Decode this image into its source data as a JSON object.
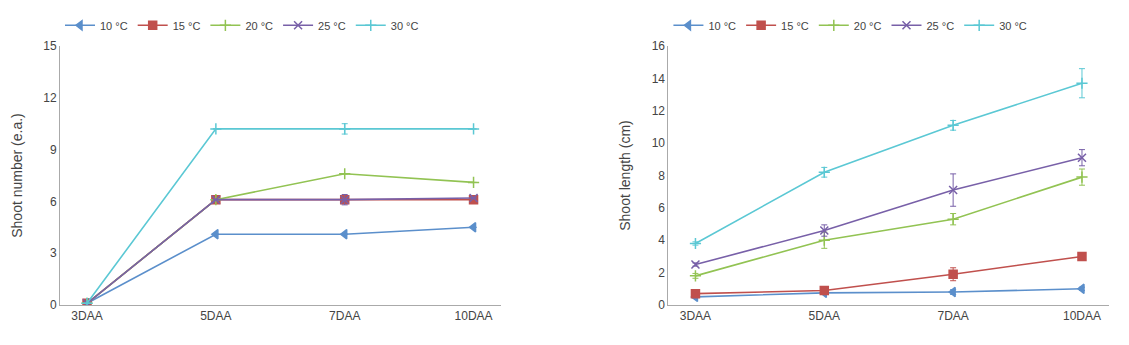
{
  "chart_data": [
    {
      "type": "line",
      "categories": [
        "3DAA",
        "5DAA",
        "7DAA",
        "10DAA"
      ],
      "ylabel": "Shoot number (e.a.)",
      "ylim": [
        0,
        15
      ],
      "yticks": [
        0,
        3,
        6,
        9,
        12,
        15
      ],
      "grid": false,
      "legend": "top",
      "series": [
        {
          "name": "10 °C",
          "color": "#5b8fcb",
          "marker": "triangle-left",
          "values": [
            0.1,
            4.1,
            4.1,
            4.5
          ],
          "errors": [
            0.0,
            0.0,
            0.0,
            0.0
          ]
        },
        {
          "name": "15 °C",
          "color": "#c0504d",
          "marker": "square",
          "values": [
            0.1,
            6.1,
            6.1,
            6.1
          ],
          "errors": [
            0.0,
            0.0,
            0.0,
            0.0
          ]
        },
        {
          "name": "20 °C",
          "color": "#92c353",
          "marker": "plus",
          "values": [
            0.1,
            6.1,
            7.6,
            7.1
          ],
          "errors": [
            0.0,
            0.0,
            0.0,
            0.0
          ]
        },
        {
          "name": "25 °C",
          "color": "#7860a8",
          "marker": "x",
          "values": [
            0.1,
            6.1,
            6.1,
            6.2
          ],
          "errors": [
            0.0,
            0.0,
            0.3,
            0.0
          ]
        },
        {
          "name": "30 °C",
          "color": "#5bc8d4",
          "marker": "plus",
          "values": [
            0.1,
            10.2,
            10.2,
            10.2
          ],
          "errors": [
            0.0,
            0.0,
            0.3,
            0.0
          ]
        }
      ]
    },
    {
      "type": "line",
      "categories": [
        "3DAA",
        "5DAA",
        "7DAA",
        "10DAA"
      ],
      "ylabel": "Shoot length (cm)",
      "ylim": [
        0,
        16
      ],
      "yticks": [
        0,
        2,
        4,
        6,
        8,
        10,
        12,
        14,
        16
      ],
      "grid": false,
      "legend": "top",
      "series": [
        {
          "name": "10 °C",
          "color": "#5b8fcb",
          "marker": "triangle-left",
          "values": [
            0.5,
            0.75,
            0.8,
            1.0
          ],
          "errors": [
            0.05,
            0.1,
            0.15,
            0.1
          ]
        },
        {
          "name": "15 °C",
          "color": "#c0504d",
          "marker": "square",
          "values": [
            0.7,
            0.9,
            1.9,
            3.0
          ],
          "errors": [
            0.05,
            0.1,
            0.4,
            0.2
          ]
        },
        {
          "name": "20 °C",
          "color": "#92c353",
          "marker": "plus",
          "values": [
            1.8,
            4.0,
            5.3,
            7.9
          ],
          "errors": [
            0.15,
            0.5,
            0.35,
            0.5
          ]
        },
        {
          "name": "25 °C",
          "color": "#7860a8",
          "marker": "x",
          "values": [
            2.5,
            4.6,
            7.1,
            9.1
          ],
          "errors": [
            0.1,
            0.35,
            1.0,
            0.5
          ]
        },
        {
          "name": "30 °C",
          "color": "#5bc8d4",
          "marker": "plus",
          "values": [
            3.8,
            8.2,
            11.1,
            13.7
          ],
          "errors": [
            0.1,
            0.3,
            0.3,
            0.9
          ]
        }
      ]
    }
  ]
}
